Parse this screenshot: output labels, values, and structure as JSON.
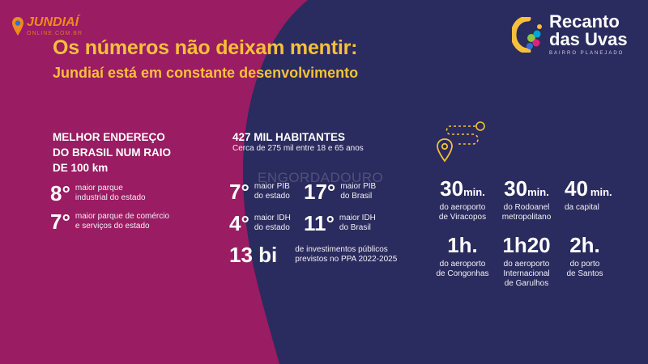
{
  "logo_left": {
    "brand": "JUNDIAÍ",
    "sub": "ONLINE.COM.BR"
  },
  "logo_right": {
    "line1": "Recanto",
    "line2": "das Uvas",
    "tagline": "BAIRRO PLANEJADO"
  },
  "heading": "Os números não deixam mentir:",
  "subheading": "Jundiaí está em constante desenvolvimento",
  "watermark": "ENGORDADOURO",
  "address_section": {
    "title_lines": [
      "MELHOR ENDEREÇO",
      "DO BRASIL NUM RAIO",
      "DE 100 km"
    ],
    "stats": [
      {
        "value": "8°",
        "desc": [
          "maior parque",
          "industrial do estado"
        ]
      },
      {
        "value": "7°",
        "desc": [
          "maior parque de comércio",
          "e serviços do estado"
        ]
      }
    ]
  },
  "population_section": {
    "title": "427 MIL HABITANTES",
    "subtitle": "Cerca de 275 mil entre 18 e 65 anos",
    "stats": [
      {
        "value": "7°",
        "desc": [
          "maior PIB",
          "do estado"
        ]
      },
      {
        "value": "17°",
        "desc": [
          "maior PIB",
          "do Brasil"
        ]
      },
      {
        "value": "4°",
        "desc": [
          "maior IDH",
          "do estado"
        ]
      },
      {
        "value": "11°",
        "desc": [
          "maior IDH",
          "do Brasil"
        ]
      }
    ],
    "investment": {
      "value": "13 bi",
      "desc": [
        "de investimentos públicos",
        "previstos no PPA 2022-2025"
      ]
    }
  },
  "distances": [
    {
      "value": "30",
      "unit": "min.",
      "desc": [
        "do aeroporto",
        "de Viracopos"
      ]
    },
    {
      "value": "30",
      "unit": "min.",
      "desc": [
        "do Rodoanel",
        "metropolitano"
      ]
    },
    {
      "value": "40",
      "unit": "min.",
      "desc": [
        "da capital"
      ]
    },
    {
      "value": "1h.",
      "unit": "",
      "desc": [
        "do aeroporto",
        "de Congonhas"
      ]
    },
    {
      "value": "1h20",
      "unit": "",
      "desc": [
        "do aeroporto",
        "Internacional",
        "de Garulhos"
      ]
    },
    {
      "value": "2h.",
      "unit": "",
      "desc": [
        "do porto",
        "de Santos"
      ]
    }
  ],
  "colors": {
    "navy": "#2a2b5e",
    "magenta": "#9a1c63",
    "gold": "#f6c03a",
    "orange": "#f08a1e"
  },
  "icons": [
    "map-pin-icon",
    "route-dots-icon",
    "location-pin-icon",
    "grapes-logo-icon"
  ]
}
